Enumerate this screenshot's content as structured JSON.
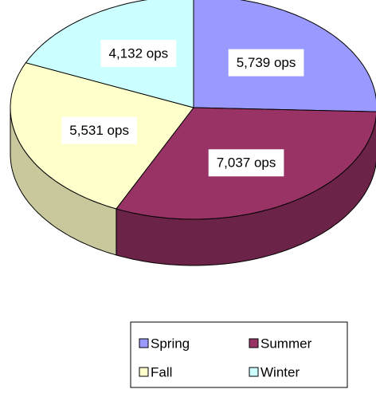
{
  "chart_data": {
    "type": "pie",
    "categories": [
      "Spring",
      "Summer",
      "Fall",
      "Winter"
    ],
    "values": [
      5739,
      7037,
      5531,
      4132
    ],
    "value_labels": [
      "5,739 ops",
      "7,037 ops",
      "5,531 ops",
      "4,132 ops"
    ],
    "colors": [
      "#9999ff",
      "#993366",
      "#ffffcc",
      "#ccffff"
    ],
    "side_colors": [
      "#6b6bb3",
      "#6b2347",
      "#c8c89c",
      "#8fb3b3"
    ],
    "legend": "bottom"
  }
}
